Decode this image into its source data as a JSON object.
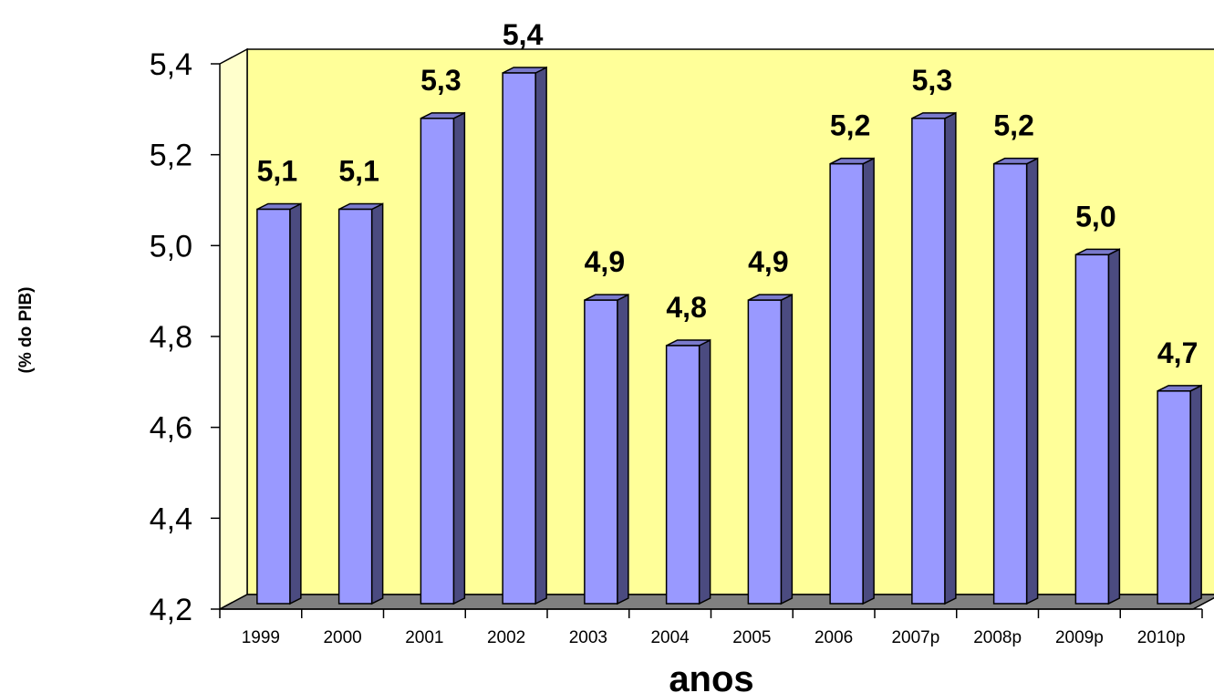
{
  "chart_data": {
    "type": "bar",
    "title": "",
    "xlabel": "anos",
    "ylabel": "(% do PIB)",
    "categories": [
      "1999",
      "2000",
      "2001",
      "2002",
      "2003",
      "2004",
      "2005",
      "2006",
      "2007p",
      "2008p",
      "2009p",
      "2010p"
    ],
    "values": [
      5.1,
      5.1,
      5.3,
      5.4,
      4.9,
      4.8,
      4.9,
      5.2,
      5.3,
      5.2,
      5.0,
      4.7
    ],
    "data_labels": [
      "5,1",
      "5,1",
      "5,3",
      "5,4",
      "4,9",
      "4,8",
      "4,9",
      "5,2",
      "5,3",
      "5,2",
      "5,0",
      "4,7"
    ],
    "ylim": [
      4.2,
      5.4
    ],
    "yticks": [
      4.2,
      4.4,
      4.6,
      4.8,
      5.0,
      5.2,
      5.4
    ],
    "ytick_labels": [
      "4,2",
      "4,4",
      "4,6",
      "4,8",
      "5,0",
      "5,2",
      "5,4"
    ],
    "grid": false,
    "legend": "none",
    "style": "3d",
    "colors": {
      "bar_front": "#9999ff",
      "bar_side": "#4b4b80",
      "bar_top": "#7a7acc",
      "wall": "#ffff99",
      "floor": "#808080",
      "outline": "#000000"
    }
  }
}
